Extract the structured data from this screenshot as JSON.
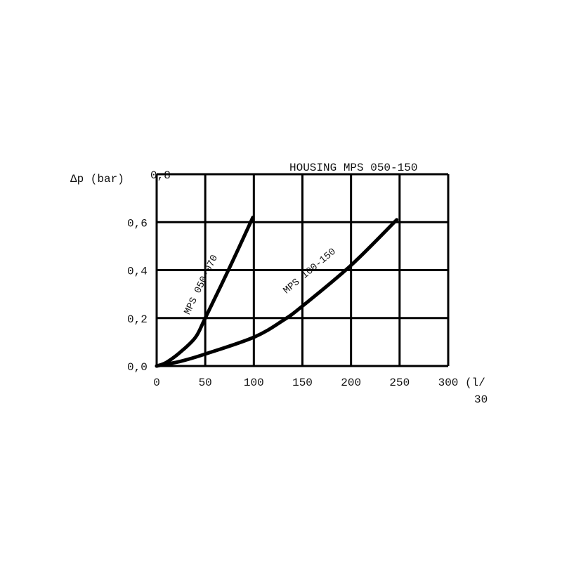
{
  "chart_data": {
    "type": "line",
    "title": "HOUSING MPS 050-150",
    "ylabel": "Δp (bar)",
    "xlabel": "(l/",
    "xlabel_extra": "30",
    "xlim": [
      0,
      300
    ],
    "ylim": [
      0,
      0.8
    ],
    "grid": true,
    "x_ticks": [
      0,
      50,
      100,
      150,
      200,
      250,
      300
    ],
    "x_tick_labels": [
      "0",
      "50",
      "100",
      "150",
      "200",
      "250",
      "300"
    ],
    "y_ticks": [
      0,
      0.2,
      0.4,
      0.6,
      0.8
    ],
    "y_tick_labels": [
      "0,0",
      "0,2",
      "0,4",
      "0,6",
      "0,8"
    ],
    "series": [
      {
        "name": "MPS 050-070",
        "x": [
          0,
          10,
          25,
          40,
          50,
          75,
          99
        ],
        "y": [
          0,
          0.015,
          0.06,
          0.12,
          0.2,
          0.41,
          0.62
        ]
      },
      {
        "name": "MPS 100-150",
        "x": [
          0,
          25,
          50,
          100,
          130,
          150,
          200,
          247
        ],
        "y": [
          0,
          0.02,
          0.05,
          0.12,
          0.19,
          0.25,
          0.42,
          0.61
        ]
      }
    ],
    "colors": {
      "line": "#000000",
      "grid": "#000000"
    }
  }
}
